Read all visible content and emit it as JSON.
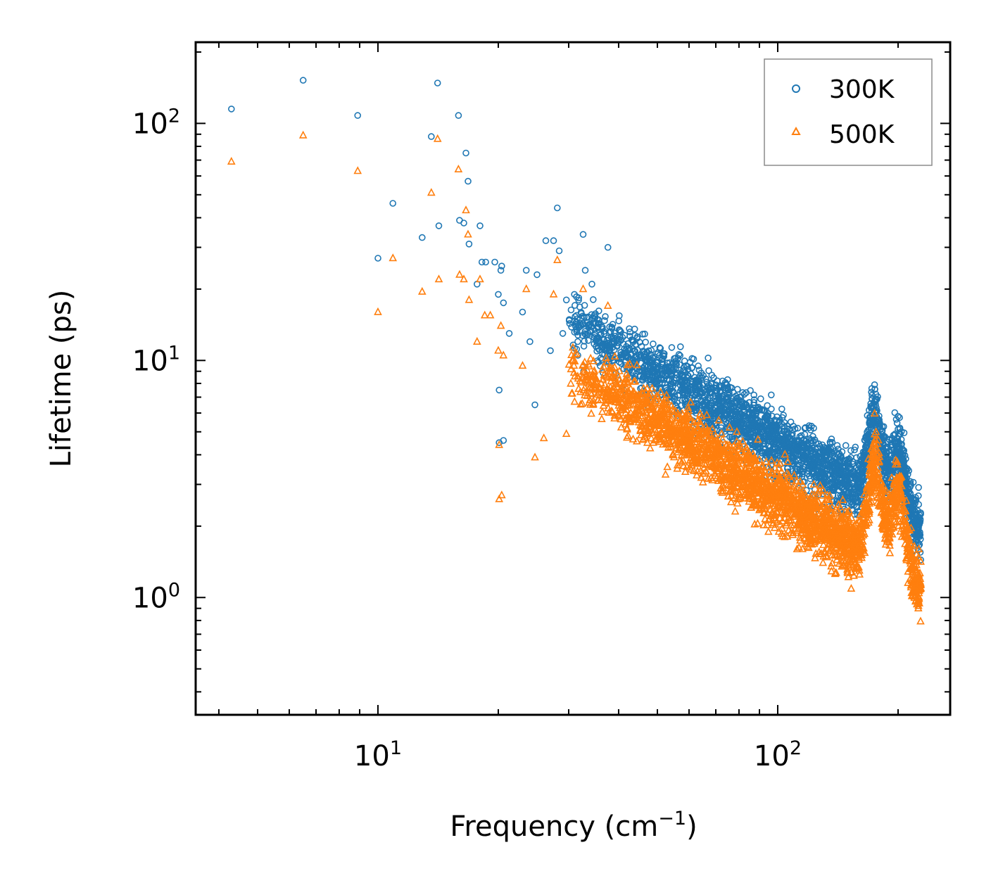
{
  "chart_data": {
    "type": "scatter",
    "xscale": "log",
    "yscale": "log",
    "xlim": [
      3.5,
      270
    ],
    "ylim": [
      0.32,
      220
    ],
    "xlabel_main": "Frequency (cm",
    "xlabel_sup": "−1",
    "xlabel_end": ")",
    "ylabel": "Lifetime (ps)",
    "x_ticks": [
      {
        "base": "10",
        "exp": "1"
      },
      {
        "base": "10",
        "exp": "2"
      }
    ],
    "y_ticks": [
      {
        "base": "10",
        "exp": "0"
      },
      {
        "base": "10",
        "exp": "1"
      },
      {
        "base": "10",
        "exp": "2"
      }
    ],
    "legend_position": "top-right",
    "series": [
      {
        "name": "300K",
        "marker": "circle",
        "color": "#1f77b4",
        "points": [
          [
            4.3,
            115
          ],
          [
            6.5,
            152
          ],
          [
            8.9,
            108
          ],
          [
            10.0,
            27
          ],
          [
            10.9,
            46
          ],
          [
            12.9,
            33
          ],
          [
            13.6,
            88
          ],
          [
            14.1,
            148
          ],
          [
            14.2,
            37
          ],
          [
            15.9,
            108
          ],
          [
            16.0,
            39
          ],
          [
            16.4,
            38
          ],
          [
            16.6,
            75
          ],
          [
            16.8,
            57
          ],
          [
            16.9,
            31
          ],
          [
            17.7,
            21
          ],
          [
            18.0,
            37
          ],
          [
            18.2,
            26
          ],
          [
            18.6,
            26
          ],
          [
            19.6,
            26
          ],
          [
            20.0,
            19
          ],
          [
            20.4,
            25
          ],
          [
            20.3,
            24
          ],
          [
            20.6,
            17.5
          ],
          [
            21.3,
            13
          ],
          [
            23.0,
            16
          ],
          [
            23.5,
            24
          ],
          [
            24.7,
            6.5
          ],
          [
            26.3,
            32
          ],
          [
            27.5,
            32
          ],
          [
            28.1,
            44
          ],
          [
            28.4,
            29
          ],
          [
            29.6,
            18
          ],
          [
            32.6,
            34
          ],
          [
            34.3,
            21
          ],
          [
            37.6,
            30
          ],
          [
            20.1,
            4.5
          ],
          [
            20.6,
            4.6
          ],
          [
            20.1,
            7.5
          ],
          [
            24.0,
            12
          ],
          [
            25.0,
            23
          ],
          [
            27.0,
            11
          ],
          [
            29.0,
            13
          ],
          [
            31.0,
            19
          ],
          [
            33.0,
            24
          ]
        ],
        "dense_band": {
          "x_start": 30,
          "x_end": 228,
          "y_start": 15,
          "y_end": 2.0,
          "bumps": [
            {
              "x": 175,
              "y": 6.0
            },
            {
              "x": 200,
              "y": 4.2
            }
          ]
        }
      },
      {
        "name": "500K",
        "marker": "triangle",
        "color": "#ff7f0e",
        "points": [
          [
            4.3,
            69
          ],
          [
            6.5,
            89
          ],
          [
            8.9,
            63
          ],
          [
            10.0,
            16
          ],
          [
            10.9,
            27
          ],
          [
            12.9,
            19.5
          ],
          [
            13.6,
            51
          ],
          [
            14.1,
            86
          ],
          [
            14.2,
            22
          ],
          [
            15.9,
            64
          ],
          [
            16.0,
            23
          ],
          [
            16.4,
            22
          ],
          [
            16.6,
            43
          ],
          [
            16.8,
            34
          ],
          [
            16.9,
            18
          ],
          [
            17.7,
            12
          ],
          [
            18.0,
            22
          ],
          [
            18.5,
            15.5
          ],
          [
            19.1,
            15.5
          ],
          [
            20.0,
            11
          ],
          [
            20.3,
            14
          ],
          [
            20.6,
            10.5
          ],
          [
            20.1,
            4.4
          ],
          [
            20.1,
            2.6
          ],
          [
            20.4,
            2.7
          ],
          [
            23.0,
            9.5
          ],
          [
            23.5,
            20
          ],
          [
            24.7,
            3.9
          ],
          [
            26.0,
            4.7
          ],
          [
            27.5,
            19
          ],
          [
            28.1,
            26.5
          ],
          [
            29.6,
            4.9
          ],
          [
            32.6,
            20
          ],
          [
            37.6,
            17
          ]
        ],
        "dense_band": {
          "x_start": 30,
          "x_end": 228,
          "y_start": 9.5,
          "y_end": 1.1,
          "bumps": [
            {
              "x": 175,
              "y": 3.6
            },
            {
              "x": 200,
              "y": 2.8
            }
          ]
        }
      }
    ]
  }
}
